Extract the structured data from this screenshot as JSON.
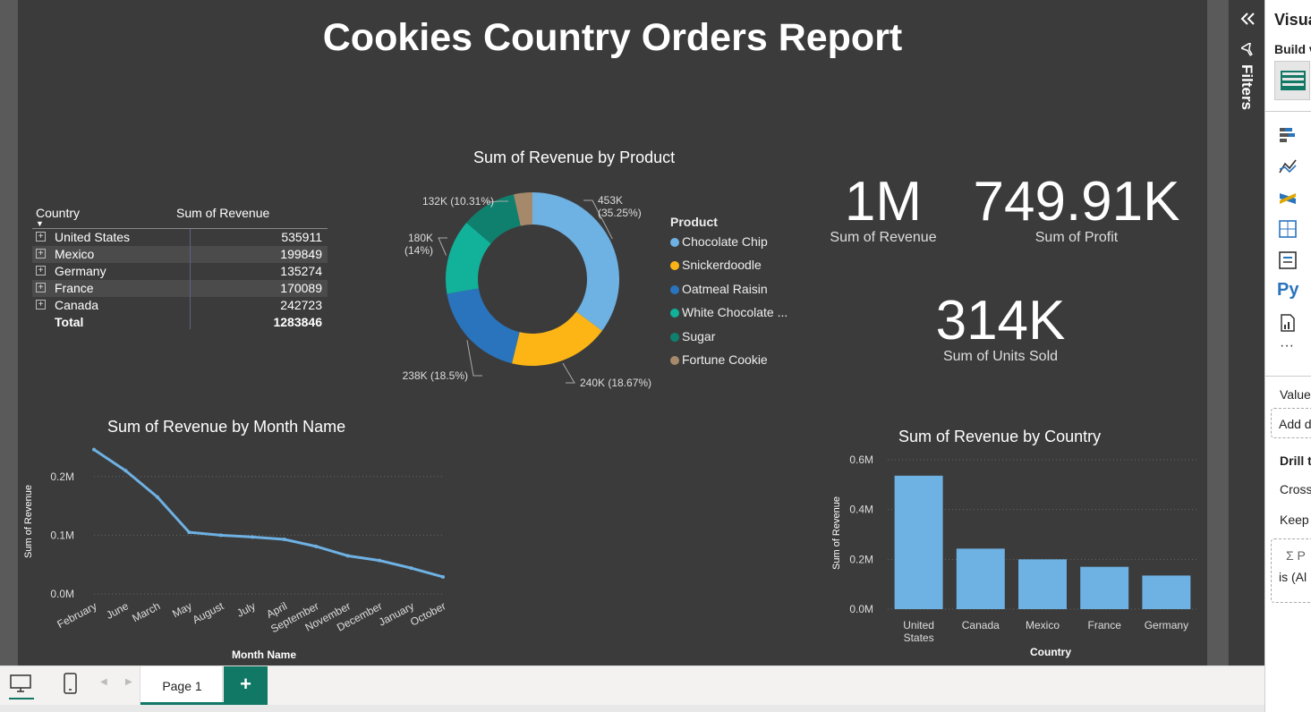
{
  "report": {
    "title": "Cookies Country Orders Report"
  },
  "table": {
    "headers": [
      "Country",
      "Sum of Revenue"
    ],
    "rows": [
      {
        "country": "United States",
        "revenue": "535911"
      },
      {
        "country": "Mexico",
        "revenue": "199849"
      },
      {
        "country": "Germany",
        "revenue": "135274"
      },
      {
        "country": "France",
        "revenue": "170089"
      },
      {
        "country": "Canada",
        "revenue": "242723"
      }
    ],
    "total_label": "Total",
    "total_value": "1283846"
  },
  "kpis": [
    {
      "value": "1M",
      "label": "Sum of Revenue"
    },
    {
      "value": "749.91K",
      "label": "Sum of Profit"
    },
    {
      "value": "314K",
      "label": "Sum of Units Sold"
    }
  ],
  "chart_data": [
    {
      "type": "pie",
      "title": "Sum of Revenue by Product",
      "legend_title": "Product",
      "legend_position": "right",
      "slices": [
        {
          "name": "Chocolate Chip",
          "legend_text": "Chocolate Chip",
          "value": 453,
          "label": "453K",
          "pct": "(35.25%)",
          "color": "#6eb1e3"
        },
        {
          "name": "Snickerdoodle",
          "legend_text": "Snickerdoodle",
          "value": 240,
          "label": "240K (18.67%)",
          "pct": "",
          "color": "#fdb515"
        },
        {
          "name": "Oatmeal Raisin",
          "legend_text": "Oatmeal Raisin",
          "value": 238,
          "label": "238K (18.5%)",
          "pct": "",
          "color": "#2a74bd"
        },
        {
          "name": "White Chocolate Macadamia Nut",
          "legend_text": "White Chocolate ...",
          "value": 180,
          "label": "180K",
          "pct": "(14%)",
          "color": "#12b19a"
        },
        {
          "name": "Sugar",
          "legend_text": "Sugar",
          "value": 132,
          "label": "132K (10.31%)",
          "pct": "",
          "color": "#0f806e"
        },
        {
          "name": "Fortune Cookie",
          "legend_text": "Fortune Cookie",
          "value": 45,
          "label": "",
          "pct": "",
          "color": "#a6896a"
        }
      ]
    },
    {
      "type": "line",
      "title": "Sum of Revenue by Month Name",
      "xlabel": "Month Name",
      "ylabel": "Sum of Revenue",
      "ylim": [
        0,
        0.25
      ],
      "yticks": [
        {
          "v": 0,
          "t": "0.0M"
        },
        {
          "v": 0.1,
          "t": "0.1M"
        },
        {
          "v": 0.2,
          "t": "0.2M"
        }
      ],
      "categories": [
        "February",
        "June",
        "March",
        "May",
        "August",
        "July",
        "April",
        "September",
        "November",
        "December",
        "January",
        "October"
      ],
      "values": [
        0.246,
        0.21,
        0.165,
        0.105,
        0.1,
        0.097,
        0.093,
        0.081,
        0.065,
        0.057,
        0.044,
        0.029
      ],
      "color": "#6eb1e3"
    },
    {
      "type": "bar",
      "title": "Sum of Revenue by Country",
      "xlabel": "Country",
      "ylabel": "Sum of Revenue",
      "ylim": [
        0,
        0.6
      ],
      "yticks": [
        {
          "v": 0,
          "t": "0.0M"
        },
        {
          "v": 0.2,
          "t": "0.2M"
        },
        {
          "v": 0.4,
          "t": "0.4M"
        },
        {
          "v": 0.6,
          "t": "0.6M"
        }
      ],
      "categories": [
        [
          "United",
          "States"
        ],
        [
          "Canada"
        ],
        [
          "Mexico"
        ],
        [
          "France"
        ],
        [
          "Germany"
        ]
      ],
      "values": [
        0.536,
        0.243,
        0.2,
        0.17,
        0.135
      ],
      "color": "#6eb1e3"
    }
  ],
  "filters_pane": {
    "label": "Filters"
  },
  "viz_pane": {
    "title": "Visua",
    "build": "Build v",
    "values": "Value",
    "add": "Add d",
    "drill": "Drill t",
    "cross": "Cross",
    "keep": "Keep",
    "filter_sigma": "Σ P",
    "filter_is": "is (Al"
  },
  "bottom": {
    "page_tab": "Page 1",
    "add_page": "+"
  },
  "colors": {
    "accent": "#117865",
    "canvas": "#3b3b3b"
  }
}
